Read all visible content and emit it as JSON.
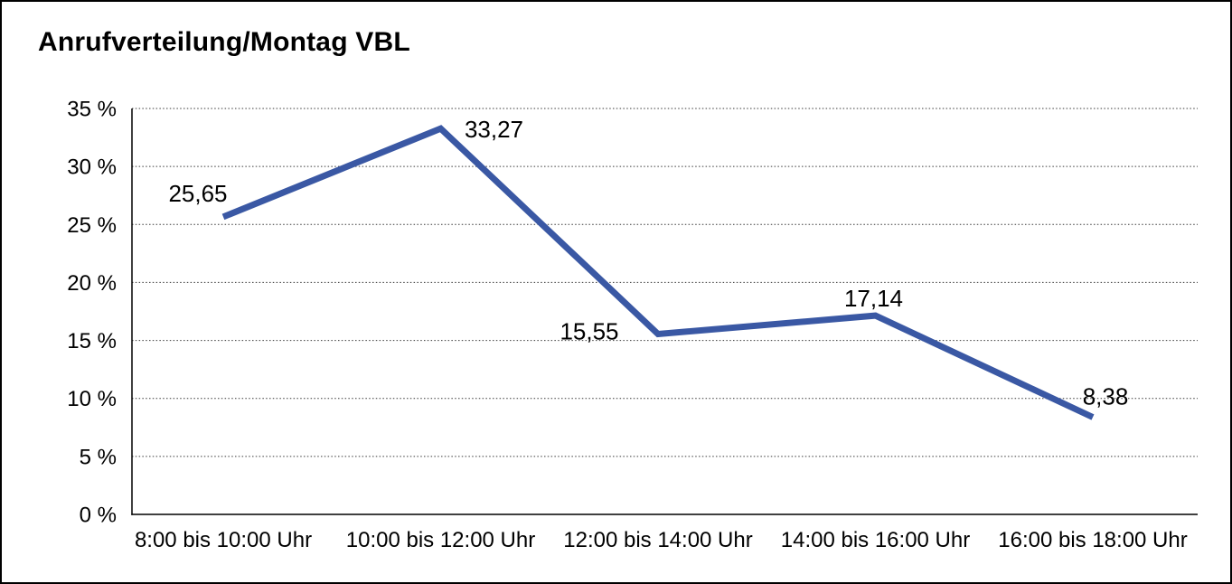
{
  "window": {
    "title": "Anrufverteilung/Montag VBL"
  },
  "chart_data": {
    "type": "line",
    "title": "Anrufverteilung/Montag VBL",
    "categories": [
      "8:00 bis 10:00 Uhr",
      "10:00 bis 12:00 Uhr",
      "12:00 bis 14:00 Uhr",
      "14:00 bis 16:00 Uhr",
      "16:00 bis 18:00 Uhr"
    ],
    "values": [
      25.65,
      33.27,
      15.55,
      17.14,
      8.38
    ],
    "data_labels": [
      "25,65",
      "33,27",
      "15,55",
      "17,14",
      "8,38"
    ],
    "xlabel": "",
    "ylabel": "",
    "ylim": [
      0,
      35
    ],
    "ytick_step": 5,
    "ytick_labels": [
      "0 %",
      "5 %",
      "10 %",
      "15 %",
      "20 %",
      "25 %",
      "30 %",
      "35 %"
    ],
    "grid": "horizontal-dotted",
    "legend": "none",
    "colors": {
      "line": "#3A58A4",
      "text": "#000000",
      "axis": "#000000",
      "gridline": "#3a3a3a",
      "background": "#FFFFFF",
      "frame_border": "#000000"
    }
  }
}
